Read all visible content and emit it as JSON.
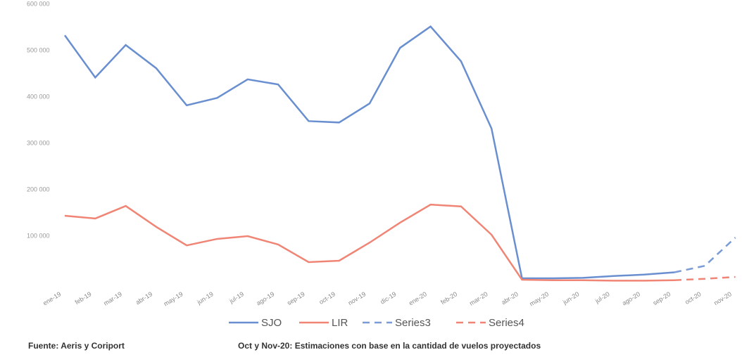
{
  "chart_data": {
    "type": "line",
    "categories": [
      "ene-19",
      "feb-19",
      "mar-19",
      "abr-19",
      "may-19",
      "jun-19",
      "jul-19",
      "ago-19",
      "sep-19",
      "oct-19",
      "nov-19",
      "dic-19",
      "ene-20",
      "feb-20",
      "mar-20",
      "abr-20",
      "may-20",
      "jun-20",
      "jul-20",
      "ago-20",
      "sep-20",
      "oct-20",
      "nov-20"
    ],
    "series": [
      {
        "name": "SJO",
        "color": "#6a8fd0",
        "dashed": false,
        "values": [
          533000,
          442000,
          512000,
          462000,
          382000,
          398000,
          438000,
          427000,
          348000,
          345000,
          386000,
          506000,
          552000,
          477000,
          332000,
          9000,
          9000,
          10000,
          14000,
          17000,
          22000,
          null,
          null
        ]
      },
      {
        "name": "LIR",
        "color": "#f08575",
        "dashed": false,
        "values": [
          144000,
          138000,
          165000,
          120000,
          80000,
          94000,
          100000,
          82000,
          44000,
          47000,
          86000,
          129000,
          168000,
          164000,
          103000,
          6000,
          5000,
          5000,
          4000,
          4000,
          5000,
          null,
          null
        ]
      },
      {
        "name": "Series3",
        "color": "#7a9bd6",
        "dashed": true,
        "values": [
          null,
          null,
          null,
          null,
          null,
          null,
          null,
          null,
          null,
          null,
          null,
          null,
          null,
          null,
          null,
          null,
          null,
          null,
          null,
          null,
          22000,
          36000,
          97000
        ]
      },
      {
        "name": "Series4",
        "color": "#f08575",
        "dashed": true,
        "values": [
          null,
          null,
          null,
          null,
          null,
          null,
          null,
          null,
          null,
          null,
          null,
          null,
          null,
          null,
          null,
          null,
          null,
          null,
          null,
          null,
          5000,
          8000,
          12000
        ]
      }
    ],
    "ylim": [
      0,
      600000
    ],
    "yticks": [
      {
        "value": 100000,
        "label": "100 000"
      },
      {
        "value": 200000,
        "label": "200 000"
      },
      {
        "value": 300000,
        "label": "300 000"
      },
      {
        "value": 400000,
        "label": "400 000"
      },
      {
        "value": 500000,
        "label": "500 000"
      },
      {
        "value": 600000,
        "label": "600 000"
      }
    ],
    "grid": false,
    "legend": "bottom",
    "annotations": [
      "Fuente: Aeris y Coriport",
      "Oct y Nov-20: Estimaciones con base en la cantidad de vuelos proyectados"
    ]
  }
}
